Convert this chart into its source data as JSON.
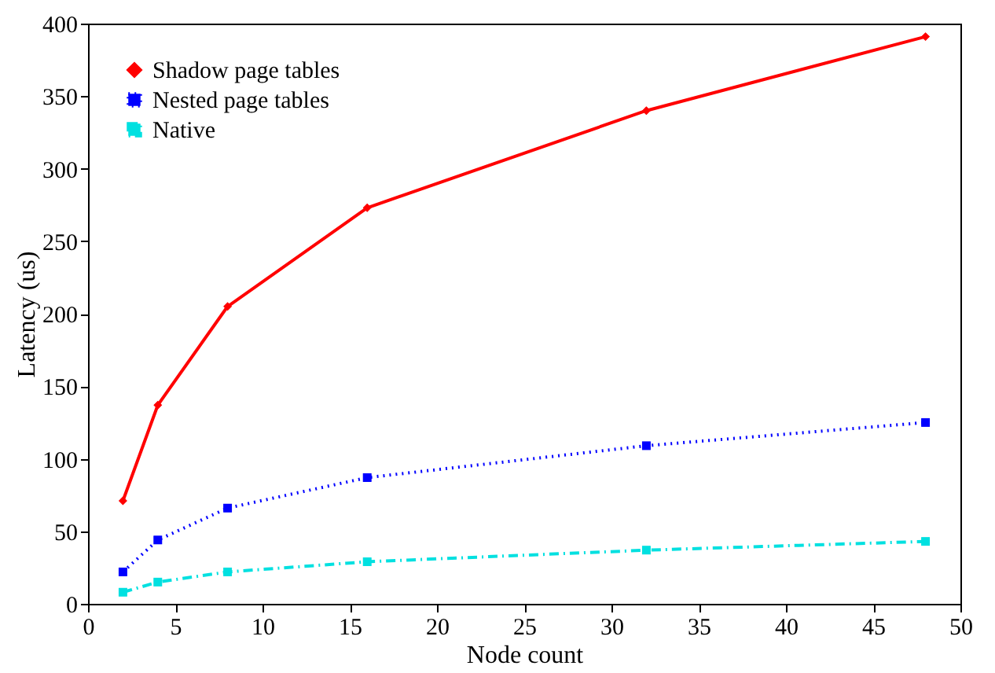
{
  "chart_data": {
    "type": "line",
    "xlabel": "Node count",
    "ylabel": "Latency (us)",
    "x": [
      2,
      4,
      8,
      16,
      32,
      48
    ],
    "series": [
      {
        "name": "Shadow page tables",
        "color": "#ff0000",
        "values": [
          71,
          137,
          205,
          273,
          340,
          391
        ],
        "marker": "diamond",
        "line_style": "solid"
      },
      {
        "name": "Nested page tables",
        "color": "#0000ff",
        "values": [
          22,
          44,
          66,
          87,
          109,
          125
        ],
        "marker": "square",
        "line_style": "dotted"
      },
      {
        "name": "Native",
        "color": "#00e0e0",
        "values": [
          8,
          15,
          22,
          29,
          37,
          43
        ],
        "marker": "square",
        "line_style": "dashed"
      }
    ],
    "xlim": [
      0,
      50
    ],
    "xticks": [
      0,
      5,
      10,
      15,
      20,
      25,
      30,
      35,
      40,
      45,
      50
    ],
    "ylim": [
      0,
      400
    ],
    "yticks": [
      0,
      50,
      100,
      150,
      200,
      250,
      300,
      350,
      400
    ],
    "grid": false,
    "legend": "top left"
  }
}
